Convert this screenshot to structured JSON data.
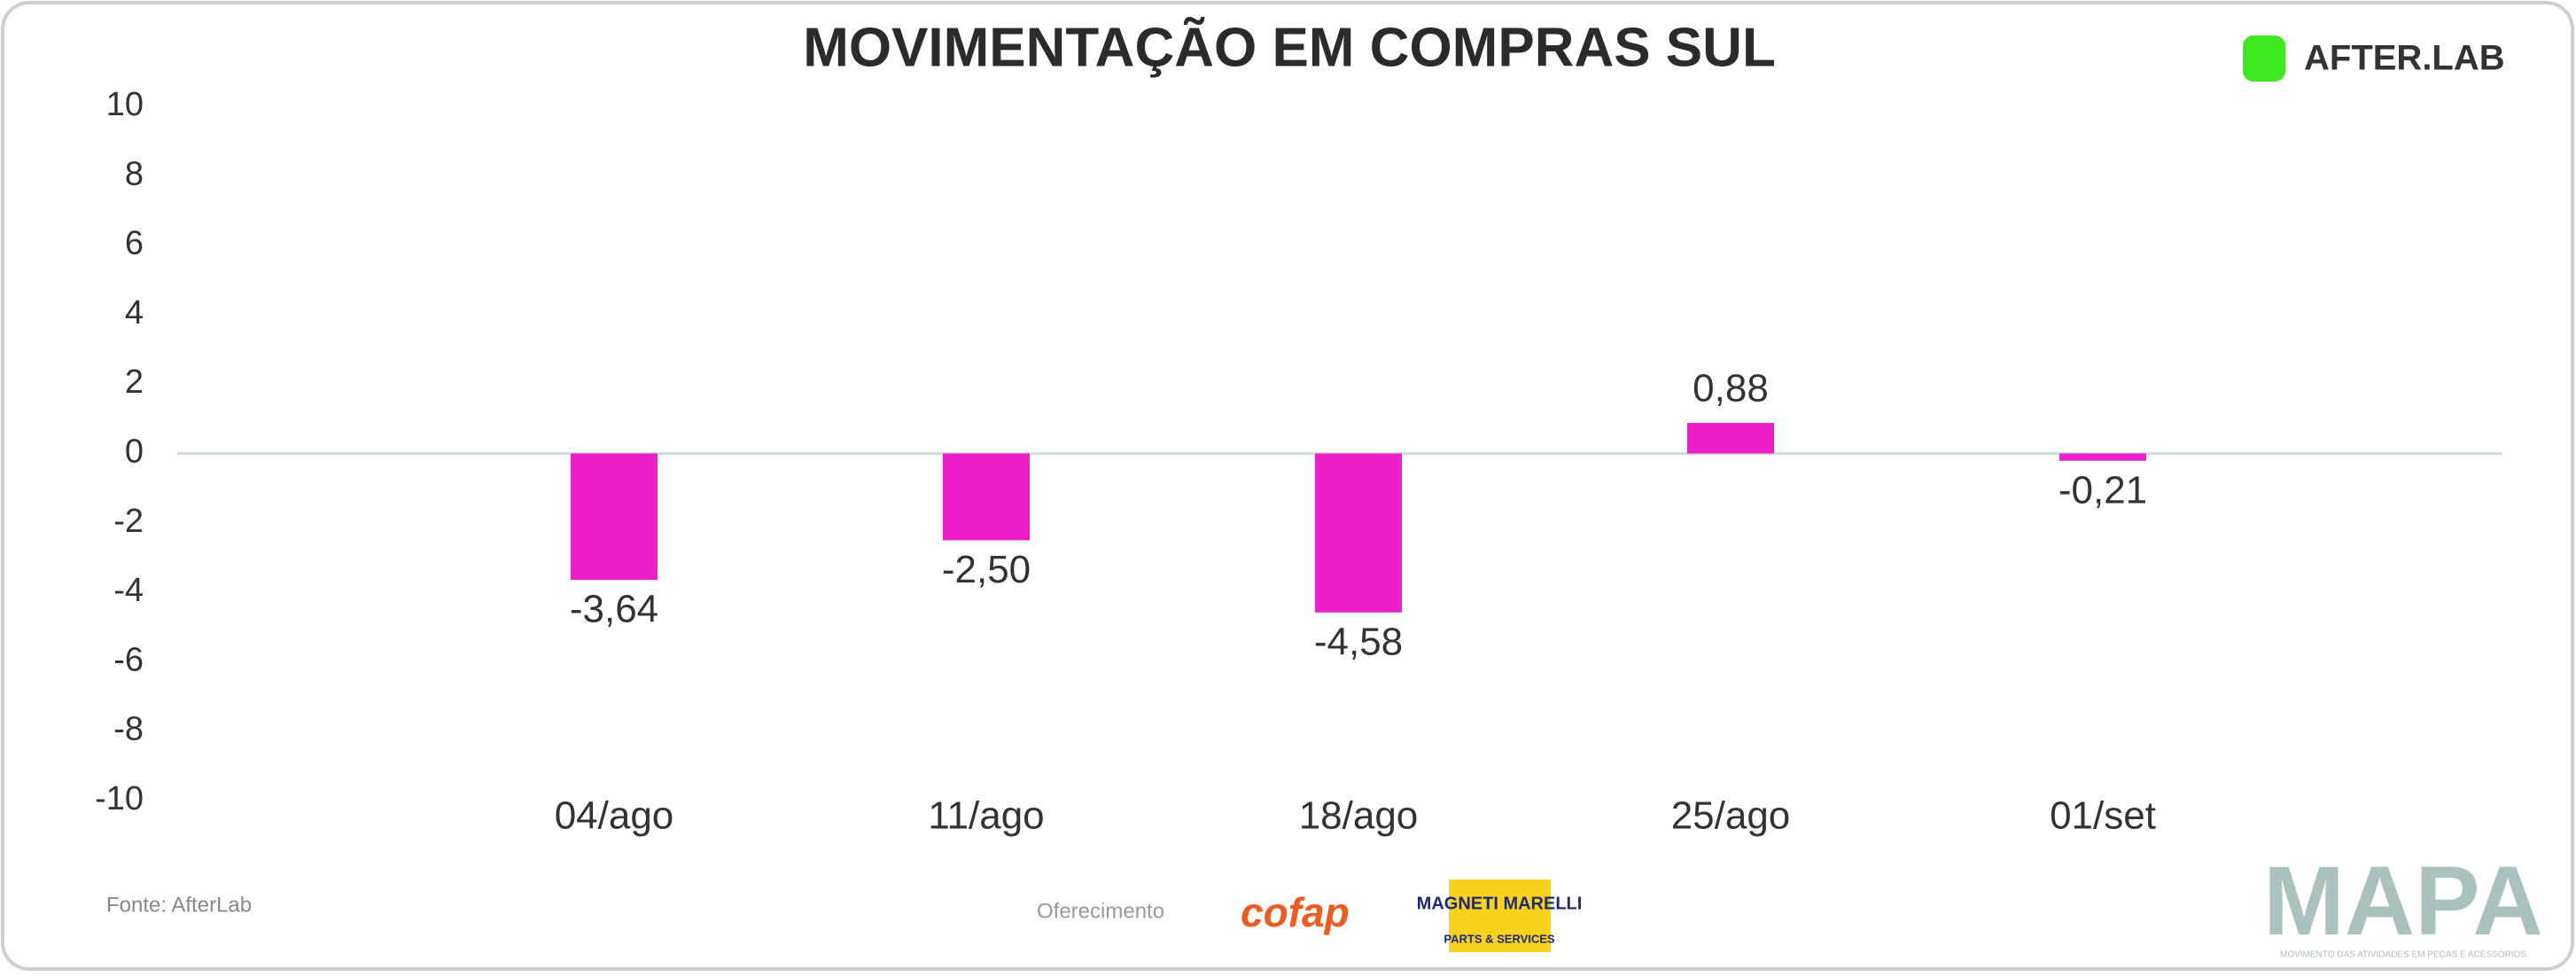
{
  "chart_data": {
    "type": "bar",
    "title": "MOVIMENTAÇÃO EM COMPRAS SUL",
    "categories": [
      "04/ago",
      "11/ago",
      "18/ago",
      "25/ago",
      "01/set"
    ],
    "values": [
      -3.64,
      -2.5,
      -4.58,
      0.88,
      -0.21
    ],
    "value_labels": [
      "-3,64",
      "-2,50",
      "-4,58",
      "0,88",
      "-0,21"
    ],
    "color": "#ec1fcb",
    "ylim": [
      -10,
      10
    ],
    "yticks": [
      10,
      8,
      6,
      4,
      2,
      0,
      -2,
      -4,
      -6,
      -8,
      -10
    ],
    "grid": false
  },
  "footer": {
    "source": "Fonte: AfterLab",
    "sponsor_label": "Oferecimento",
    "sponsors": [
      "cofap",
      "MAGNETI MARELLI",
      "PARTS & SERVICES"
    ],
    "brand": "AFTER.LAB",
    "mapa": "MAPA",
    "mapa_tagline": "MOVIMENTO DAS ATIVIDADES EM PEÇAS E ACESSÓRIOS"
  }
}
